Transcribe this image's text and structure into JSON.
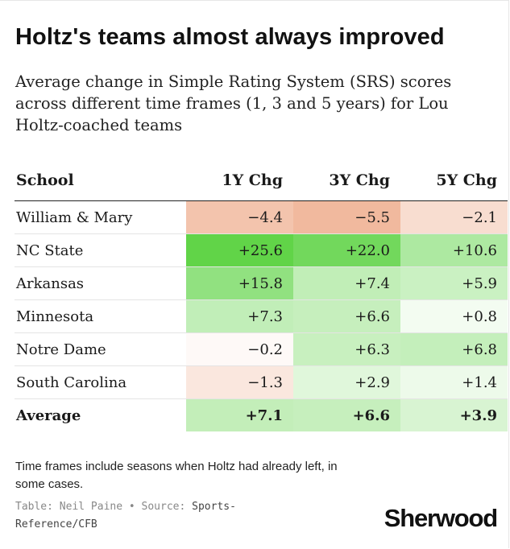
{
  "title": "Holtz's teams almost always improved",
  "subtitle": "Average change in Simple Rating System (SRS) scores across different time frames (1, 3 and 5 years) for Lou Holtz-coached teams",
  "chart_data": {
    "type": "table",
    "columns": [
      "School",
      "1Y Chg",
      "3Y Chg",
      "5Y Chg"
    ],
    "rows": [
      {
        "school": "William & Mary",
        "values": [
          "−4.4",
          "−5.5",
          "−2.1"
        ],
        "nums": [
          -4.4,
          -5.5,
          -2.1
        ]
      },
      {
        "school": "NC State",
        "values": [
          "+25.6",
          "+22.0",
          "+10.6"
        ],
        "nums": [
          25.6,
          22.0,
          10.6
        ]
      },
      {
        "school": "Arkansas",
        "values": [
          "+15.8",
          "+7.4",
          "+5.9"
        ],
        "nums": [
          15.8,
          7.4,
          5.9
        ]
      },
      {
        "school": "Minnesota",
        "values": [
          "+7.3",
          "+6.6",
          "+0.8"
        ],
        "nums": [
          7.3,
          6.6,
          0.8
        ]
      },
      {
        "school": "Notre Dame",
        "values": [
          "−0.2",
          "+6.3",
          "+6.8"
        ],
        "nums": [
          -0.2,
          6.3,
          6.8
        ]
      },
      {
        "school": "South Carolina",
        "values": [
          "−1.3",
          "+2.9",
          "+1.4"
        ],
        "nums": [
          -1.3,
          2.9,
          1.4
        ]
      }
    ],
    "average": {
      "school": "Average",
      "values": [
        "+7.1",
        "+6.6",
        "+3.9"
      ],
      "nums": [
        7.1,
        6.6,
        3.9
      ]
    },
    "colors": {
      "positive": "#5fd346",
      "negative": "#f0b497",
      "neutral": "#ffffff"
    }
  },
  "note": "Time frames include seasons when Holtz had already left, in some cases.",
  "source": {
    "prefix": "Table: Neil Paine • Source: ",
    "text": "Sports-Reference/CFB"
  },
  "brand": "Sherwood"
}
